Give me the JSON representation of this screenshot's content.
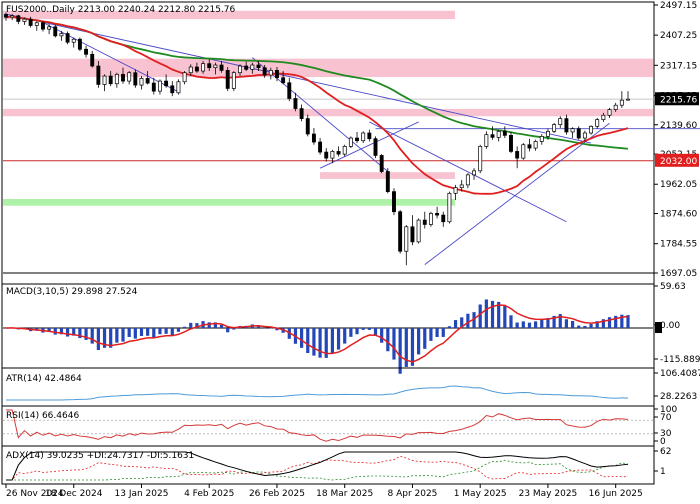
{
  "chart_data": {
    "type": "candlestick",
    "symbol": "FUS2000..Daily",
    "header_ohlc": [
      "2213.00",
      "2240.24",
      "2212.80",
      "2215.76"
    ],
    "x_labels": [
      "26 Nov 2024",
      "18 Dec 2024",
      "13 Jan 2025",
      "4 Feb 2025",
      "26 Feb 2025",
      "18 Mar 2025",
      "8 Apr 2025",
      "1 May 2025",
      "23 May 2025",
      "16 Jun 2025"
    ],
    "price_axis": {
      "ticks": [
        "2497.15",
        "2407.25",
        "2317.15",
        "2227.05",
        "2139.60",
        "2052.15",
        "1962.05",
        "1874.60",
        "1784.55",
        "1697.05"
      ],
      "last_label": "2215.76",
      "level_label": "2032.00",
      "ylim": [
        1697.05,
        2497.15
      ]
    },
    "candles": [
      [
        2469,
        2475,
        2450,
        2461
      ],
      [
        2461,
        2470,
        2452,
        2465
      ],
      [
        2465,
        2468,
        2440,
        2448
      ],
      [
        2448,
        2460,
        2438,
        2455
      ],
      [
        2455,
        2462,
        2430,
        2436
      ],
      [
        2436,
        2448,
        2420,
        2444
      ],
      [
        2444,
        2450,
        2418,
        2425
      ],
      [
        2425,
        2440,
        2410,
        2432
      ],
      [
        2432,
        2438,
        2400,
        2405
      ],
      [
        2405,
        2420,
        2390,
        2412
      ],
      [
        2412,
        2418,
        2380,
        2386
      ],
      [
        2386,
        2400,
        2370,
        2395
      ],
      [
        2395,
        2400,
        2360,
        2365
      ],
      [
        2365,
        2376,
        2340,
        2350
      ],
      [
        2350,
        2360,
        2310,
        2315
      ],
      [
        2315,
        2330,
        2250,
        2260
      ],
      [
        2260,
        2290,
        2240,
        2285
      ],
      [
        2285,
        2300,
        2255,
        2262
      ],
      [
        2262,
        2295,
        2250,
        2290
      ],
      [
        2290,
        2310,
        2262,
        2270
      ],
      [
        2270,
        2300,
        2260,
        2295
      ],
      [
        2295,
        2305,
        2250,
        2258
      ],
      [
        2258,
        2285,
        2245,
        2278
      ],
      [
        2278,
        2300,
        2260,
        2264
      ],
      [
        2264,
        2280,
        2230,
        2240
      ],
      [
        2240,
        2275,
        2230,
        2270
      ],
      [
        2270,
        2290,
        2250,
        2256
      ],
      [
        2256,
        2270,
        2225,
        2235
      ],
      [
        2235,
        2275,
        2230,
        2268
      ],
      [
        2268,
        2300,
        2260,
        2295
      ],
      [
        2295,
        2320,
        2285,
        2312
      ],
      [
        2312,
        2325,
        2295,
        2300
      ],
      [
        2300,
        2330,
        2292,
        2322
      ],
      [
        2322,
        2335,
        2300,
        2310
      ],
      [
        2310,
        2325,
        2290,
        2318
      ],
      [
        2318,
        2330,
        2295,
        2302
      ],
      [
        2302,
        2312,
        2240,
        2248
      ],
      [
        2248,
        2300,
        2240,
        2295
      ],
      [
        2295,
        2320,
        2285,
        2315
      ],
      [
        2315,
        2328,
        2300,
        2305
      ],
      [
        2305,
        2325,
        2292,
        2318
      ],
      [
        2318,
        2330,
        2300,
        2310
      ],
      [
        2310,
        2318,
        2280,
        2288
      ],
      [
        2288,
        2310,
        2275,
        2302
      ],
      [
        2302,
        2312,
        2270,
        2280
      ],
      [
        2280,
        2300,
        2260,
        2265
      ],
      [
        2265,
        2280,
        2210,
        2218
      ],
      [
        2218,
        2235,
        2180,
        2188
      ],
      [
        2188,
        2200,
        2150,
        2158
      ],
      [
        2158,
        2170,
        2105,
        2112
      ],
      [
        2112,
        2130,
        2080,
        2088
      ],
      [
        2088,
        2100,
        2050,
        2058
      ],
      [
        2058,
        2070,
        2030,
        2040
      ],
      [
        2040,
        2065,
        2025,
        2060
      ],
      [
        2060,
        2075,
        2045,
        2052
      ],
      [
        2052,
        2080,
        2045,
        2075
      ],
      [
        2075,
        2105,
        2070,
        2100
      ],
      [
        2100,
        2118,
        2085,
        2092
      ],
      [
        2092,
        2120,
        2085,
        2115
      ],
      [
        2115,
        2125,
        2090,
        2098
      ],
      [
        2098,
        2105,
        2040,
        2048
      ],
      [
        2048,
        2052,
        1995,
        2000
      ],
      [
        2000,
        2010,
        1935,
        1940
      ],
      [
        1940,
        1950,
        1870,
        1880
      ],
      [
        1880,
        1885,
        1755,
        1762
      ],
      [
        1762,
        1840,
        1720,
        1835
      ],
      [
        1835,
        1870,
        1780,
        1790
      ],
      [
        1790,
        1860,
        1785,
        1855
      ],
      [
        1855,
        1880,
        1830,
        1842
      ],
      [
        1842,
        1880,
        1835,
        1875
      ],
      [
        1875,
        1895,
        1860,
        1870
      ],
      [
        1870,
        1880,
        1835,
        1850
      ],
      [
        1850,
        1940,
        1845,
        1935
      ],
      [
        1935,
        1960,
        1915,
        1952
      ],
      [
        1952,
        1975,
        1940,
        1960
      ],
      [
        1960,
        1995,
        1950,
        1990
      ],
      [
        1990,
        2010,
        1975,
        2002
      ],
      [
        2002,
        2080,
        1995,
        2075
      ],
      [
        2075,
        2120,
        2068,
        2110
      ],
      [
        2110,
        2135,
        2095,
        2102
      ],
      [
        2102,
        2125,
        2090,
        2120
      ],
      [
        2120,
        2135,
        2100,
        2108
      ],
      [
        2108,
        2118,
        2055,
        2060
      ],
      [
        2060,
        2075,
        2010,
        2040
      ],
      [
        2040,
        2085,
        2035,
        2080
      ],
      [
        2080,
        2098,
        2060,
        2070
      ],
      [
        2070,
        2095,
        2062,
        2090
      ],
      [
        2090,
        2112,
        2080,
        2105
      ],
      [
        2105,
        2128,
        2095,
        2120
      ],
      [
        2120,
        2145,
        2115,
        2140
      ],
      [
        2140,
        2165,
        2130,
        2158
      ],
      [
        2158,
        2170,
        2110,
        2118
      ],
      [
        2118,
        2132,
        2100,
        2128
      ],
      [
        2128,
        2135,
        2095,
        2100
      ],
      [
        2100,
        2122,
        2090,
        2115
      ],
      [
        2115,
        2138,
        2110,
        2135
      ],
      [
        2135,
        2160,
        2128,
        2155
      ],
      [
        2155,
        2175,
        2148,
        2168
      ],
      [
        2168,
        2190,
        2160,
        2185
      ],
      [
        2185,
        2205,
        2178,
        2198
      ],
      [
        2198,
        2240,
        2190,
        2213
      ],
      [
        2213,
        2240,
        2212,
        2216
      ]
    ],
    "indicators": [
      {
        "label": "MACD(3,10,5) 29.898 27.524",
        "ticks": [
          "59.63",
          "0.00",
          "-115.889"
        ]
      },
      {
        "label": "ATR(14) 42.4864",
        "ticks": [
          "106.4087",
          "28.2263"
        ]
      },
      {
        "label": "RSI(14) 66.4646",
        "ticks": [
          "100",
          "70",
          "30",
          "0"
        ]
      },
      {
        "label": "ADX(14) 39.0235 +DI:24.7317 -DI:5.1631",
        "ticks": [
          "62",
          "1"
        ]
      }
    ],
    "colors": {
      "up": "#000000",
      "down": "#000000",
      "fast_ma": "#e21f1f",
      "slow_ma": "#1f8a1f",
      "resistance_zone": "#f8c2d0",
      "support_zone": "#aef2a8",
      "trendline": "#4a4ac8",
      "level_line": "#c82828",
      "last_badge": "#000000",
      "level_badge": "#e21f1f",
      "macd_hist": "#2346b8",
      "macd_signal": "#e21f1f",
      "atr": "#4f9bd9",
      "rsi": "#d33a3a",
      "adx": "#000000",
      "pdi": "#2a8a2a",
      "mdi": "#e21f1f"
    }
  }
}
